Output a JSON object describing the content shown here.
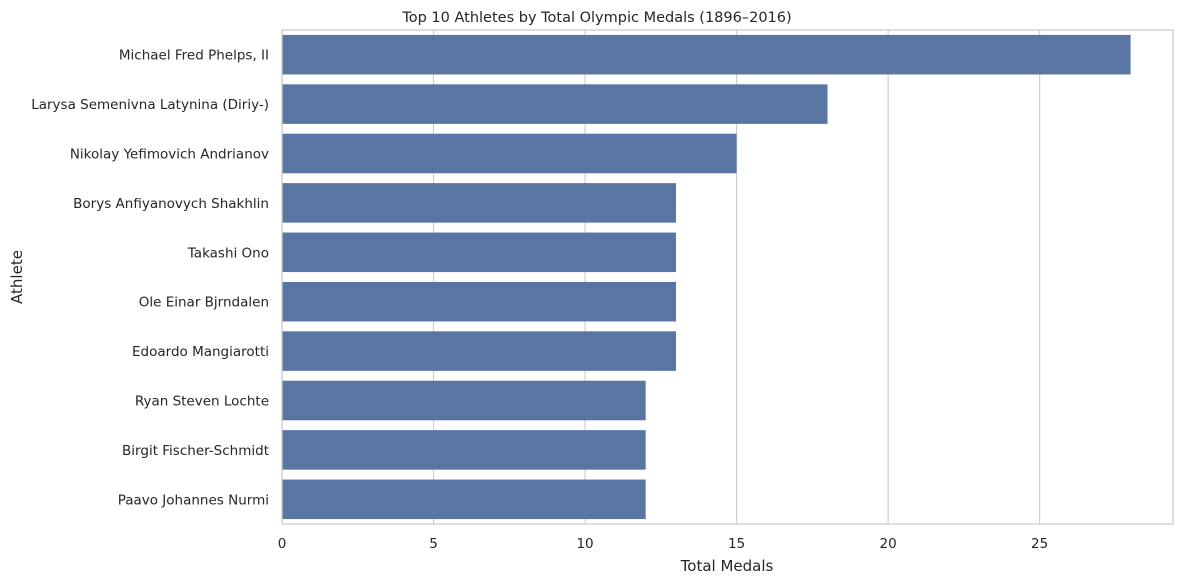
{
  "chart_data": {
    "type": "bar",
    "orientation": "horizontal",
    "title": "Top 10 Athletes by Total Olympic Medals (1896–2016)",
    "xlabel": "Total Medals",
    "ylabel": "Athlete",
    "categories": [
      "Michael Fred Phelps, II",
      "Larysa Semenivna Latynina (Diriy-)",
      "Nikolay Yefimovich Andrianov",
      "Borys Anfiyanovych Shakhlin",
      "Takashi Ono",
      "Ole Einar Bjrndalen",
      "Edoardo Mangiarotti",
      "Ryan Steven Lochte",
      "Birgit Fischer-Schmidt",
      "Paavo Johannes Nurmi"
    ],
    "values": [
      28,
      18,
      15,
      13,
      13,
      13,
      13,
      12,
      12,
      12
    ],
    "xlim": [
      0,
      29.4
    ],
    "xticks": [
      0,
      5,
      10,
      15,
      20,
      25
    ],
    "grid": "vertical",
    "bar_color": "#5875a4",
    "grid_color": "#cccccc"
  }
}
